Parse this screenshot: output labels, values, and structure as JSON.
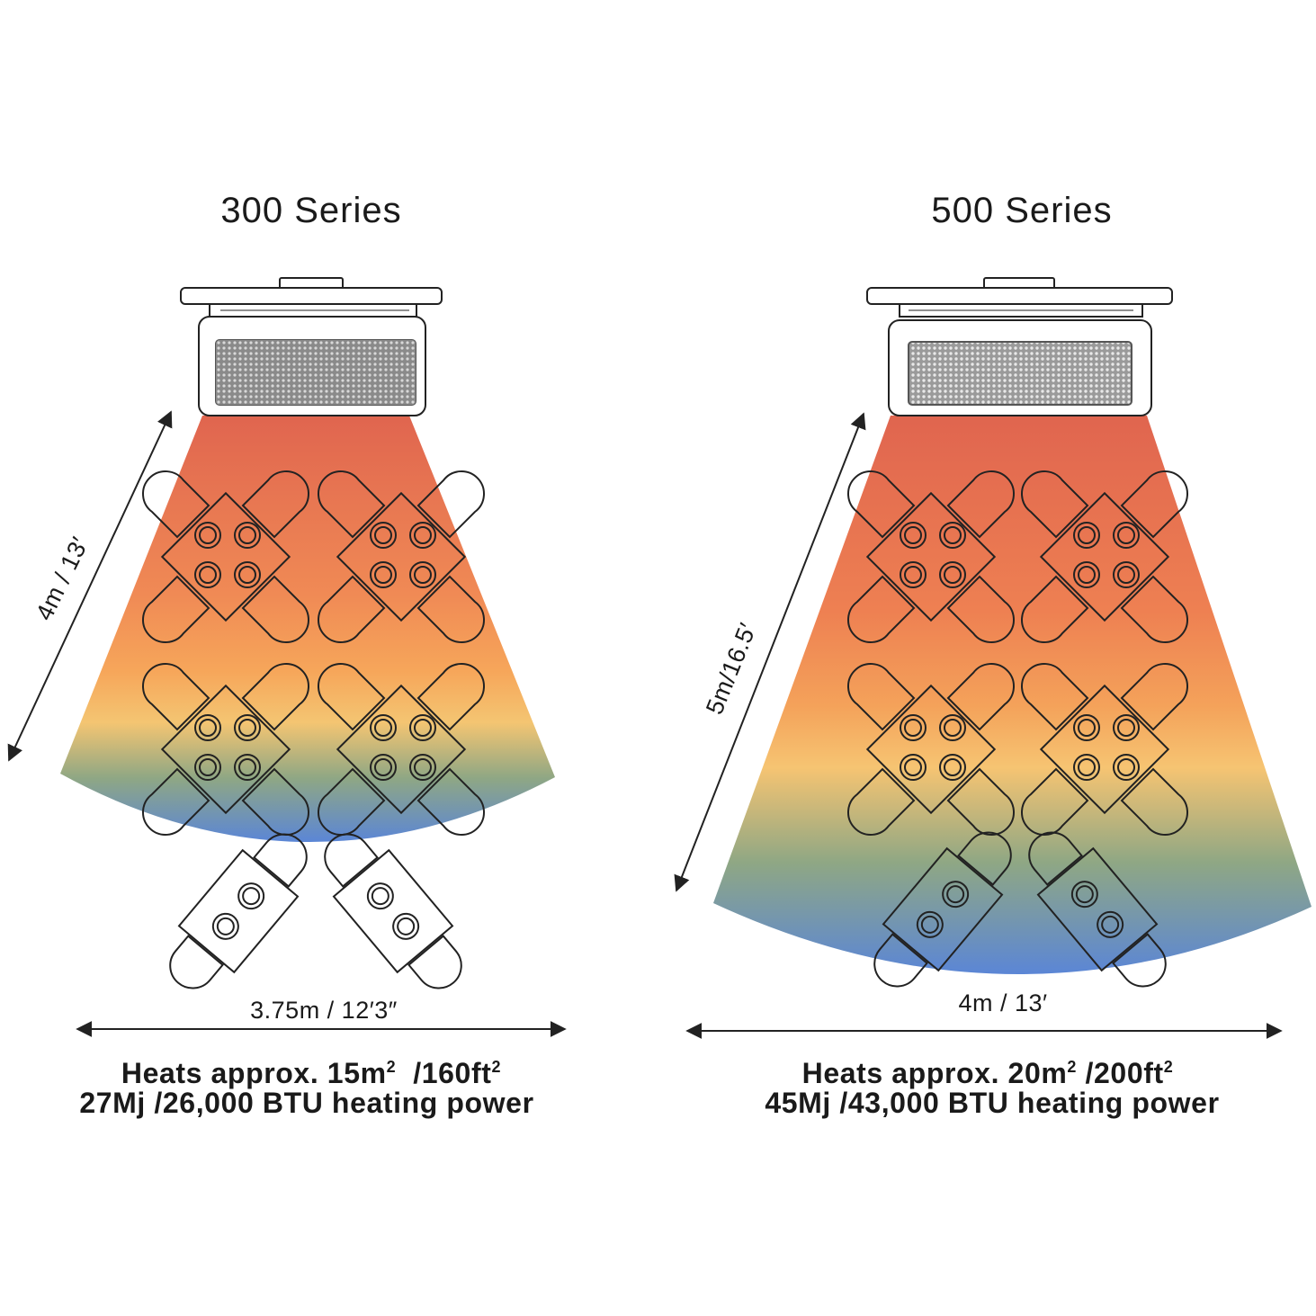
{
  "colors": {
    "heat_top": "#e0654f",
    "heat_mid_orange": "#f59a5a",
    "heat_mid_yellow": "#f7c56f",
    "heat_mid_green": "#8fa784",
    "heat_bottom": "#5b86d6",
    "line": "#222222"
  },
  "left": {
    "title": "300 Series",
    "depth_label": "4m / 13′",
    "width_label": "3.75m / 12′3″",
    "area_prefix": "Heats approx. 15m",
    "area_sup1": "2",
    "area_mid": "/160ft",
    "area_sup2": "2",
    "power_line": "27Mj /26,000 BTU heating power",
    "heater_icon": "heater-300-icon"
  },
  "right": {
    "title": "500 Series",
    "depth_label": "5m/16.5′",
    "width_label": "4m / 13′",
    "area_prefix": "Heats approx. 20m",
    "area_sup1": "2",
    "area_mid": "/200ft",
    "area_sup2": "2",
    "power_line": "45Mj /43,000 BTU heating power",
    "heater_icon": "heater-500-icon"
  }
}
